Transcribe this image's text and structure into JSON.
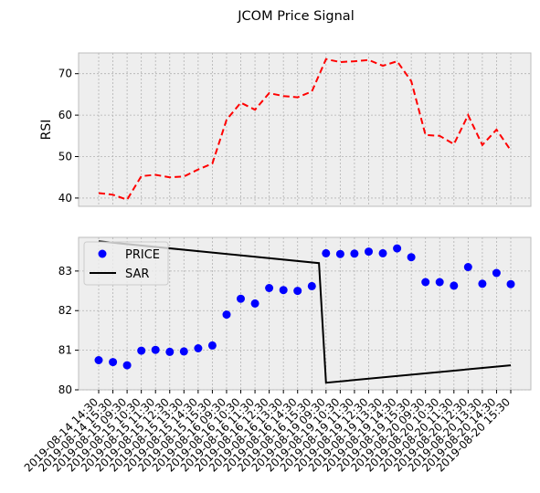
{
  "figure": {
    "title": "JCOM Price Signal"
  },
  "chart_data": [
    {
      "type": "line",
      "ylabel": "RSI",
      "ylim": [
        38,
        75
      ],
      "yticks": [
        40,
        50,
        60,
        70
      ],
      "grid": true,
      "series": [
        {
          "values": [
            41.2,
            40.8,
            39.6,
            45.3,
            45.6,
            45.0,
            45.2,
            46.9,
            48.3,
            58.9,
            63.0,
            61.3,
            65.3,
            64.6,
            64.3,
            65.7,
            73.5,
            72.8,
            73.0,
            73.3,
            71.9,
            73.0,
            68.2,
            55.2,
            55.0,
            53.0,
            60.0,
            52.8,
            56.5,
            51.5
          ],
          "color": "#ff0000",
          "style": "dashed"
        }
      ]
    },
    {
      "type": "scatter+line",
      "ylim": [
        80,
        83.85
      ],
      "yticks": [
        80,
        81,
        82,
        83
      ],
      "grid": true,
      "legend_position": "upper-left",
      "series": [
        {
          "name": "PRICE",
          "kind": "scatter",
          "color": "#0000ff",
          "values": [
            80.75,
            80.7,
            80.62,
            80.99,
            81.01,
            80.96,
            80.97,
            81.05,
            81.12,
            81.9,
            82.3,
            82.18,
            82.57,
            82.52,
            82.5,
            82.62,
            83.45,
            83.43,
            83.44,
            83.49,
            83.45,
            83.57,
            83.35,
            82.72,
            82.72,
            82.63,
            83.1,
            82.68,
            82.95,
            82.67
          ]
        },
        {
          "name": "SAR",
          "kind": "line",
          "color": "#000000",
          "points": [
            {
              "x": 0,
              "y": 83.75
            },
            {
              "x": 15.5,
              "y": 83.2
            },
            {
              "x": 16,
              "y": 80.18
            },
            {
              "x": 29,
              "y": 80.62
            }
          ]
        }
      ]
    }
  ],
  "x_labels": [
    "2019-08-14 14:30",
    "2019-08-14 15:30",
    "2019-08-15 09:30",
    "2019-08-15 10:30",
    "2019-08-15 11:30",
    "2019-08-15 12:30",
    "2019-08-15 13:30",
    "2019-08-15 14:30",
    "2019-08-15 15:30",
    "2019-08-16 09:30",
    "2019-08-16 10:30",
    "2019-08-16 11:30",
    "2019-08-16 12:30",
    "2019-08-16 13:30",
    "2019-08-16 14:30",
    "2019-08-16 15:30",
    "2019-08-19 09:30",
    "2019-08-19 10:30",
    "2019-08-19 11:30",
    "2019-08-19 12:30",
    "2019-08-19 13:30",
    "2019-08-19 14:30",
    "2019-08-19 15:30",
    "2019-08-20 09:30",
    "2019-08-20 10:30",
    "2019-08-20 11:30",
    "2019-08-20 12:30",
    "2019-08-20 13:30",
    "2019-08-20 14:30",
    "2019-08-20 15:30"
  ]
}
